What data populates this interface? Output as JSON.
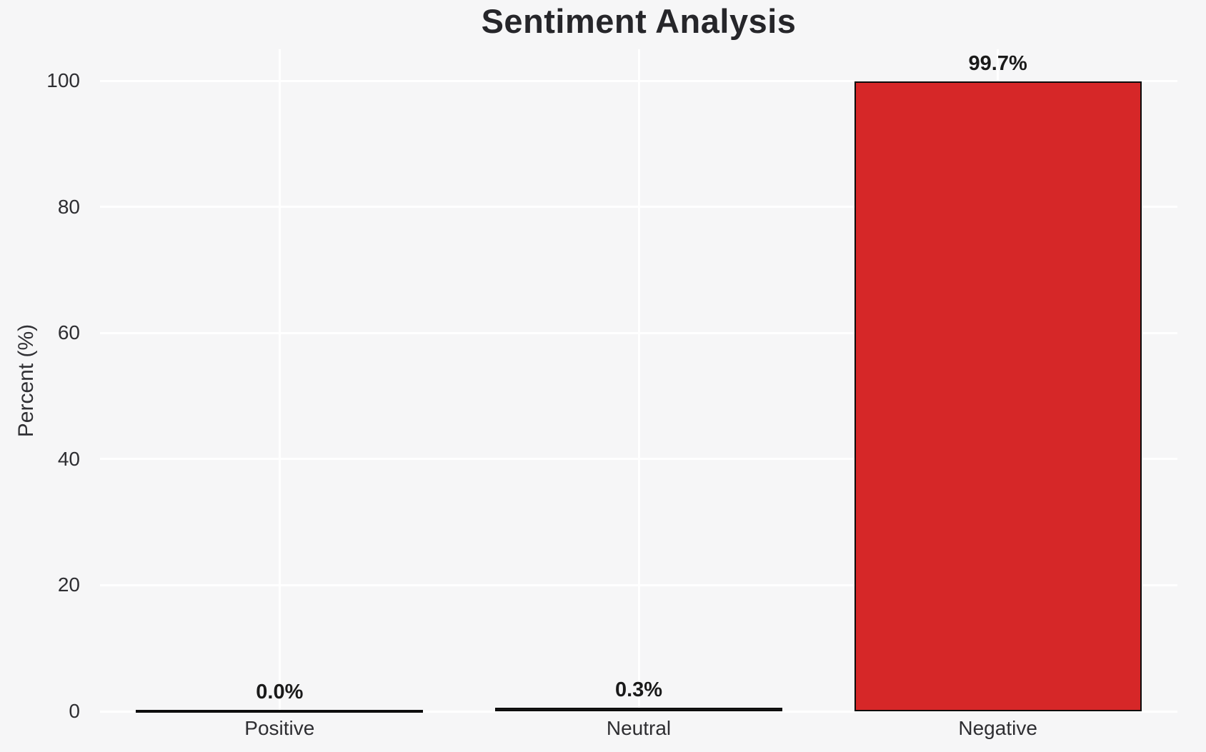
{
  "chart_data": {
    "type": "bar",
    "title": "Sentiment Analysis",
    "xlabel": "",
    "ylabel": "Percent (%)",
    "categories": [
      "Positive",
      "Neutral",
      "Negative"
    ],
    "values": [
      0.0,
      0.3,
      99.7
    ],
    "value_labels": [
      "0.0%",
      "0.3%",
      "99.7%"
    ],
    "yticks": [
      0,
      20,
      40,
      60,
      80,
      100
    ],
    "ytick_labels": [
      "0",
      "20",
      "40",
      "60",
      "80",
      "100"
    ],
    "ylim": [
      0,
      105
    ],
    "grid": "on",
    "legend_position": "none",
    "bar_colors": [
      "#1a1a1a",
      "#1a1a1a",
      "#d62728"
    ],
    "bar_edge_color": "#0d0d0d",
    "colors": {
      "background": "#f6f6f7",
      "gridline": "#ffffff",
      "title_text": "#26262a",
      "tick_text": "#2e2e32",
      "value_text": "#1a1a1a",
      "negative_bar_fill": "#d62728"
    }
  }
}
